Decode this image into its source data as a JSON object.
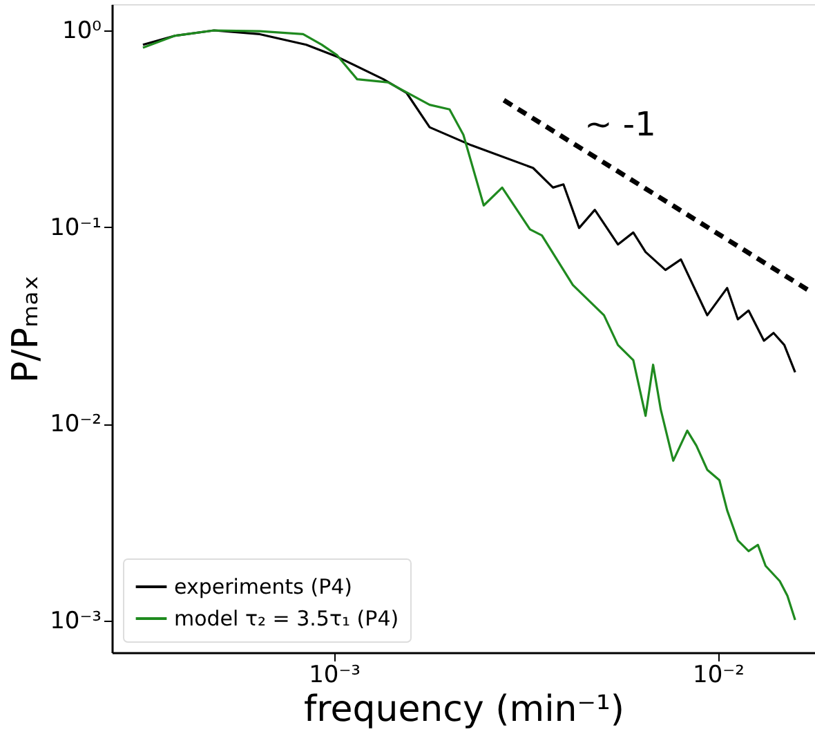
{
  "chart_data": {
    "type": "line",
    "xlabel": "frequency (min⁻¹)",
    "ylabel": "P/Pₘₐₓ",
    "log": "xy",
    "grid": false,
    "legend": "bottom left",
    "xlim": [
      0.000264,
      0.0179
    ],
    "ylim": [
      0.00069,
      1.36
    ],
    "xticks": [
      {
        "value": 0.001,
        "label": "10⁻³"
      },
      {
        "value": 0.01,
        "label": "10⁻²"
      }
    ],
    "yticks": [
      {
        "value": 0.001,
        "label": "10⁻³"
      },
      {
        "value": 0.01,
        "label": "10⁻²"
      },
      {
        "value": 0.1,
        "label": "10⁻¹"
      },
      {
        "value": 1,
        "label": "10⁰"
      }
    ],
    "annotations": [
      "~ -1"
    ],
    "series": [
      {
        "name": "experiments (P4)",
        "color": "#000000",
        "x": [
          0.000318,
          0.000385,
          0.000487,
          0.000641,
          0.000847,
          0.001019,
          0.001345,
          0.001545,
          0.001775,
          0.002277,
          0.0033,
          0.00372,
          0.00396,
          0.00435,
          0.00478,
          0.00549,
          0.00602,
          0.00648,
          0.0073,
          0.00801,
          0.00938,
          0.01057,
          0.01127,
          0.01202,
          0.01318,
          0.01396,
          0.01489,
          0.01589
        ],
        "values": [
          0.846,
          0.94,
          1.0,
          0.957,
          0.846,
          0.735,
          0.565,
          0.482,
          0.322,
          0.261,
          0.2,
          0.159,
          0.165,
          0.0991,
          0.1225,
          0.0817,
          0.094,
          0.0748,
          0.0606,
          0.0686,
          0.0357,
          0.0491,
          0.034,
          0.0377,
          0.0265,
          0.029,
          0.0252,
          0.0183
        ]
      },
      {
        "name": "model τ₂ = 3.5τ₁ (P4)",
        "color": "#1f8a1f",
        "x": [
          0.000318,
          0.000385,
          0.000487,
          0.000641,
          0.000831,
          0.000929,
          0.001019,
          0.001149,
          0.001383,
          0.001775,
          0.002,
          0.002173,
          0.002455,
          0.002742,
          0.00324,
          0.00348,
          0.00419,
          0.00505,
          0.00549,
          0.00602,
          0.00648,
          0.00678,
          0.0071,
          0.00765,
          0.00832,
          0.00879,
          0.00938,
          0.01009,
          0.01057,
          0.01127,
          0.01202,
          0.01271,
          0.01331,
          0.01449,
          0.01517,
          0.01589
        ],
        "values": [
          0.817,
          0.94,
          1.0,
          0.991,
          0.957,
          0.846,
          0.748,
          0.565,
          0.545,
          0.419,
          0.397,
          0.295,
          0.129,
          0.159,
          0.0975,
          0.0908,
          0.0508,
          0.0357,
          0.0252,
          0.0211,
          0.011,
          0.02,
          0.0118,
          0.0065,
          0.00925,
          0.00775,
          0.00585,
          0.00518,
          0.00364,
          0.00256,
          0.00226,
          0.00243,
          0.0019,
          0.00159,
          0.00134,
          0.00101
        ]
      },
      {
        "color": "#000000",
        "line_style": "dashed",
        "x": [
          0.00277,
          0.0171
        ],
        "values": [
          0.442,
          0.0482
        ]
      }
    ]
  }
}
